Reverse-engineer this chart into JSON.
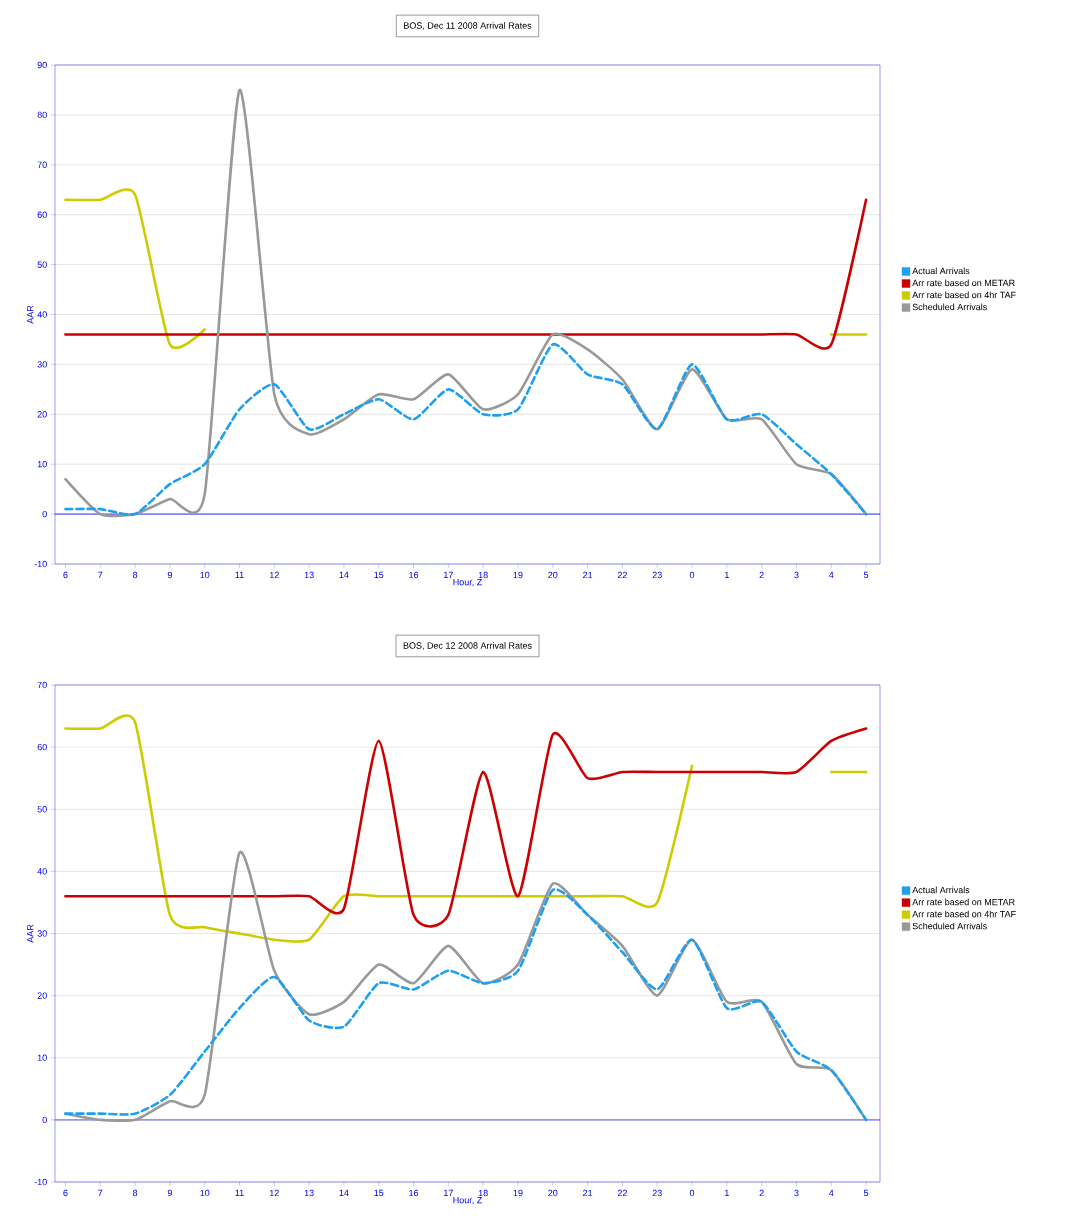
{
  "chart_data": [
    {
      "type": "line",
      "title": "BOS, Dec 11 2008 Arrival Rates",
      "xlabel": "Hour, Z",
      "ylabel": "AAR",
      "categories": [
        "6",
        "7",
        "8",
        "9",
        "10",
        "11",
        "12",
        "13",
        "14",
        "15",
        "16",
        "17",
        "18",
        "19",
        "20",
        "21",
        "22",
        "23",
        "0",
        "1",
        "2",
        "3",
        "4",
        "5"
      ],
      "ylim": [
        -10,
        90
      ],
      "yticks": [
        -10,
        0,
        10,
        20,
        30,
        40,
        50,
        60,
        70,
        80,
        90
      ],
      "grid": "y",
      "legend": "right",
      "marker": "none",
      "ref_lines": [
        {
          "axis": "y",
          "value": 0,
          "color": "#0000ee"
        }
      ],
      "series": [
        {
          "name": "Actual Arrivals",
          "color": "#1e9fef",
          "line_style": "dashed",
          "values": [
            1,
            1,
            0,
            6,
            10,
            21,
            26,
            17,
            20,
            23,
            19,
            25,
            20,
            21,
            34,
            28,
            26,
            17,
            30,
            19,
            20,
            14,
            8,
            0
          ]
        },
        {
          "name": "Arr rate based on METAR",
          "color": "#cc0000",
          "line_style": "solid",
          "values": [
            36,
            36,
            36,
            36,
            36,
            36,
            36,
            36,
            36,
            36,
            36,
            36,
            36,
            36,
            36,
            36,
            36,
            36,
            36,
            36,
            36,
            36,
            34,
            63
          ]
        },
        {
          "name": "Arr rate based on 4hr TAF",
          "color": "#cccc00",
          "line_style": "solid",
          "values": [
            63,
            63,
            64,
            34,
            37,
            null,
            null,
            null,
            null,
            null,
            null,
            null,
            null,
            null,
            null,
            null,
            null,
            null,
            null,
            null,
            null,
            null,
            36,
            36
          ]
        },
        {
          "name": "Scheduled Arrivals",
          "color": "#999999",
          "line_style": "solid",
          "values": [
            7,
            0,
            0,
            3,
            4,
            85,
            24,
            16,
            19,
            24,
            23,
            28,
            21,
            24,
            36,
            33,
            27,
            17,
            29,
            19,
            19,
            10,
            8,
            0
          ]
        }
      ]
    },
    {
      "type": "line",
      "title": "BOS, Dec 12 2008 Arrival Rates",
      "xlabel": "Hour, Z",
      "ylabel": "AAR",
      "categories": [
        "6",
        "7",
        "8",
        "9",
        "10",
        "11",
        "12",
        "13",
        "14",
        "15",
        "16",
        "17",
        "18",
        "19",
        "20",
        "21",
        "22",
        "23",
        "0",
        "1",
        "2",
        "3",
        "4",
        "5"
      ],
      "ylim": [
        -10,
        70
      ],
      "yticks": [
        -10,
        0,
        10,
        20,
        30,
        40,
        50,
        60,
        70
      ],
      "grid": "y",
      "legend": "right",
      "marker": "none",
      "ref_lines": [
        {
          "axis": "y",
          "value": 0,
          "color": "#0000ee"
        }
      ],
      "series": [
        {
          "name": "Actual Arrivals",
          "color": "#1e9fef",
          "line_style": "dashed",
          "values": [
            1,
            1,
            1,
            4,
            11,
            18,
            23,
            16,
            15,
            22,
            21,
            24,
            22,
            24,
            37,
            33,
            27,
            21,
            29,
            18,
            19,
            11,
            8,
            0
          ]
        },
        {
          "name": "Arr rate based on METAR",
          "color": "#cc0000",
          "line_style": "solid",
          "values": [
            36,
            36,
            36,
            36,
            36,
            36,
            36,
            36,
            34,
            61,
            33,
            33,
            56,
            36,
            62,
            55,
            56,
            56,
            56,
            56,
            56,
            56,
            61,
            63
          ]
        },
        {
          "name": "Arr rate based on 4hr TAF",
          "color": "#cccc00",
          "line_style": "solid",
          "values": [
            63,
            63,
            64,
            33,
            31,
            30,
            29,
            29,
            36,
            36,
            36,
            36,
            36,
            36,
            36,
            36,
            36,
            35,
            57,
            null,
            null,
            null,
            56,
            56
          ]
        },
        {
          "name": "Scheduled Arrivals",
          "color": "#999999",
          "line_style": "solid",
          "values": [
            1,
            0,
            0,
            3,
            4,
            43,
            24,
            17,
            19,
            25,
            22,
            28,
            22,
            25,
            38,
            33,
            28,
            20,
            29,
            19,
            19,
            9,
            8,
            0
          ]
        }
      ]
    }
  ]
}
